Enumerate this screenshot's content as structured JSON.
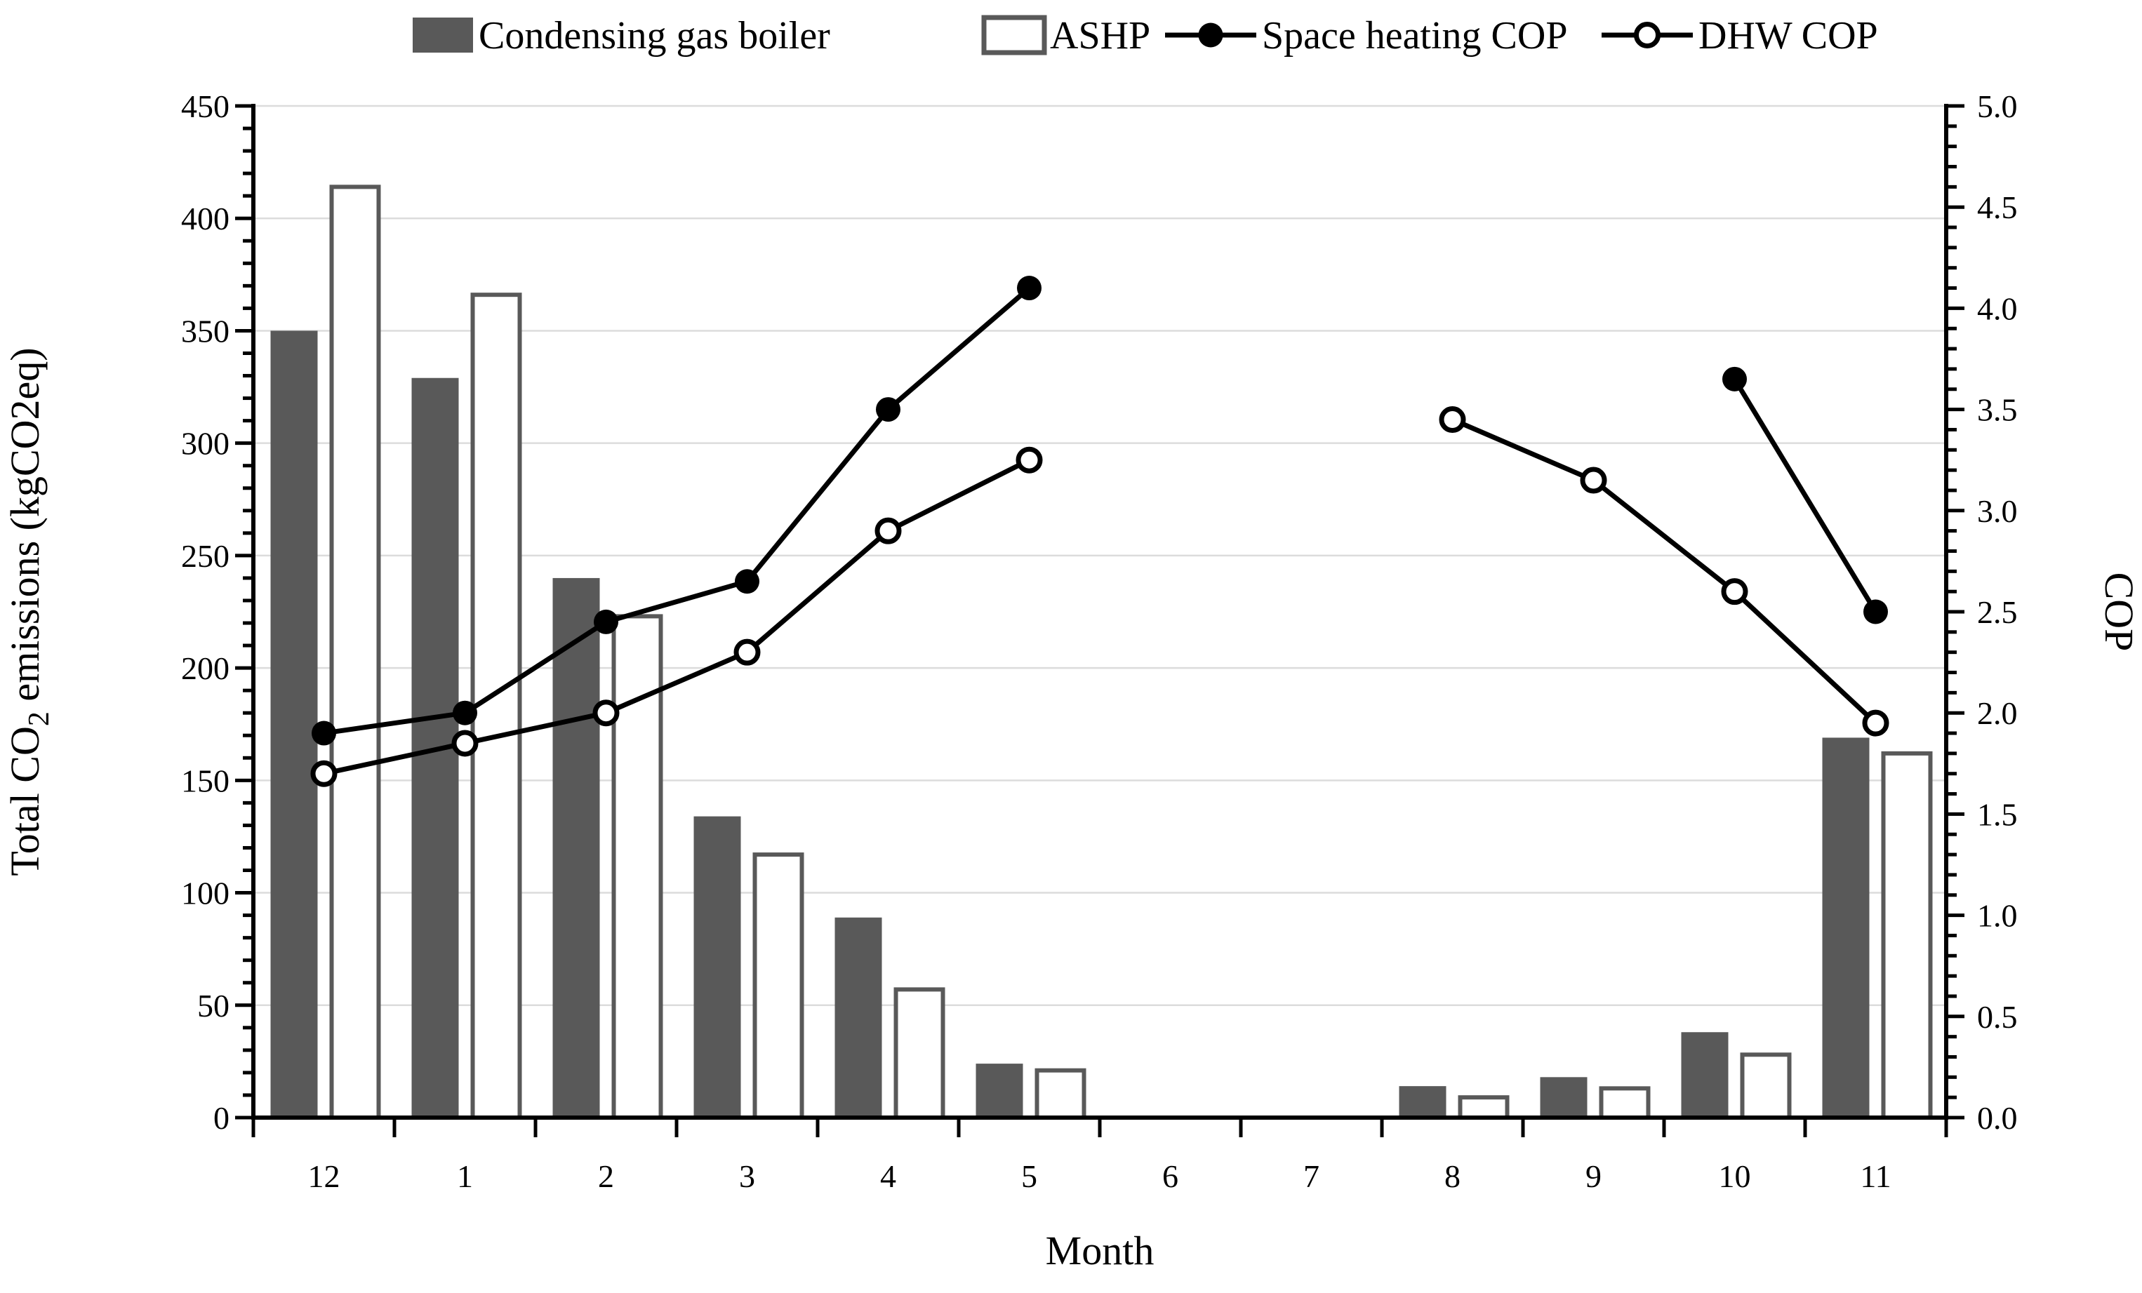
{
  "chart_data": {
    "type": "combo-bar-line",
    "categories": [
      "12",
      "1",
      "2",
      "3",
      "4",
      "5",
      "6",
      "7",
      "8",
      "9",
      "10",
      "11"
    ],
    "series": [
      {
        "name": "Condensing gas boiler",
        "type": "bar",
        "axis": "left",
        "style": "filled-gray",
        "values": [
          350,
          329,
          240,
          134,
          89,
          24,
          0,
          0,
          14,
          18,
          38,
          169
        ]
      },
      {
        "name": "ASHP",
        "type": "bar",
        "axis": "left",
        "style": "open-white",
        "values": [
          414,
          366,
          223,
          117,
          57,
          21,
          0,
          0,
          9,
          13,
          28,
          162
        ]
      },
      {
        "name": "Space heating COP",
        "type": "line",
        "axis": "right",
        "marker": "filled-circle",
        "values": [
          1.9,
          2.0,
          2.45,
          2.65,
          3.5,
          4.1,
          null,
          null,
          null,
          null,
          3.65,
          2.5
        ]
      },
      {
        "name": "DHW COP",
        "type": "line",
        "axis": "right",
        "marker": "open-circle",
        "values": [
          1.7,
          1.85,
          2.0,
          2.3,
          2.9,
          3.25,
          null,
          null,
          3.45,
          3.15,
          2.6,
          1.95
        ]
      }
    ],
    "xlabel": "Month",
    "ylabel_left": {
      "pre": "Total CO",
      "sub": "2",
      "post": " emissions (kgCO2eq)"
    },
    "ylabel_right": "COP",
    "y_left": {
      "min": 0,
      "max": 450,
      "major_step": 50,
      "minor_step": 10,
      "decimals": 0
    },
    "y_right": {
      "min": 0,
      "max": 5.0,
      "major_step": 0.5,
      "minor_step": 0.1,
      "decimals": 1
    },
    "grid": "horizontal-major-only",
    "legend_position": "top-center",
    "legend": [
      {
        "label": "Condensing gas boiler",
        "marker": "filled-square"
      },
      {
        "label": "ASHP",
        "marker": "open-square"
      },
      {
        "label": "Space heating COP",
        "marker": "filled-circle-line"
      },
      {
        "label": "DHW COP",
        "marker": "open-circle-line"
      }
    ],
    "colors": {
      "bar_fill": "#595959",
      "bar_outline": "#595959",
      "ashp_fill": "#ffffff",
      "line": "#000000",
      "grid": "#dcdcdc",
      "axis": "#000000",
      "background": "#ffffff"
    }
  }
}
